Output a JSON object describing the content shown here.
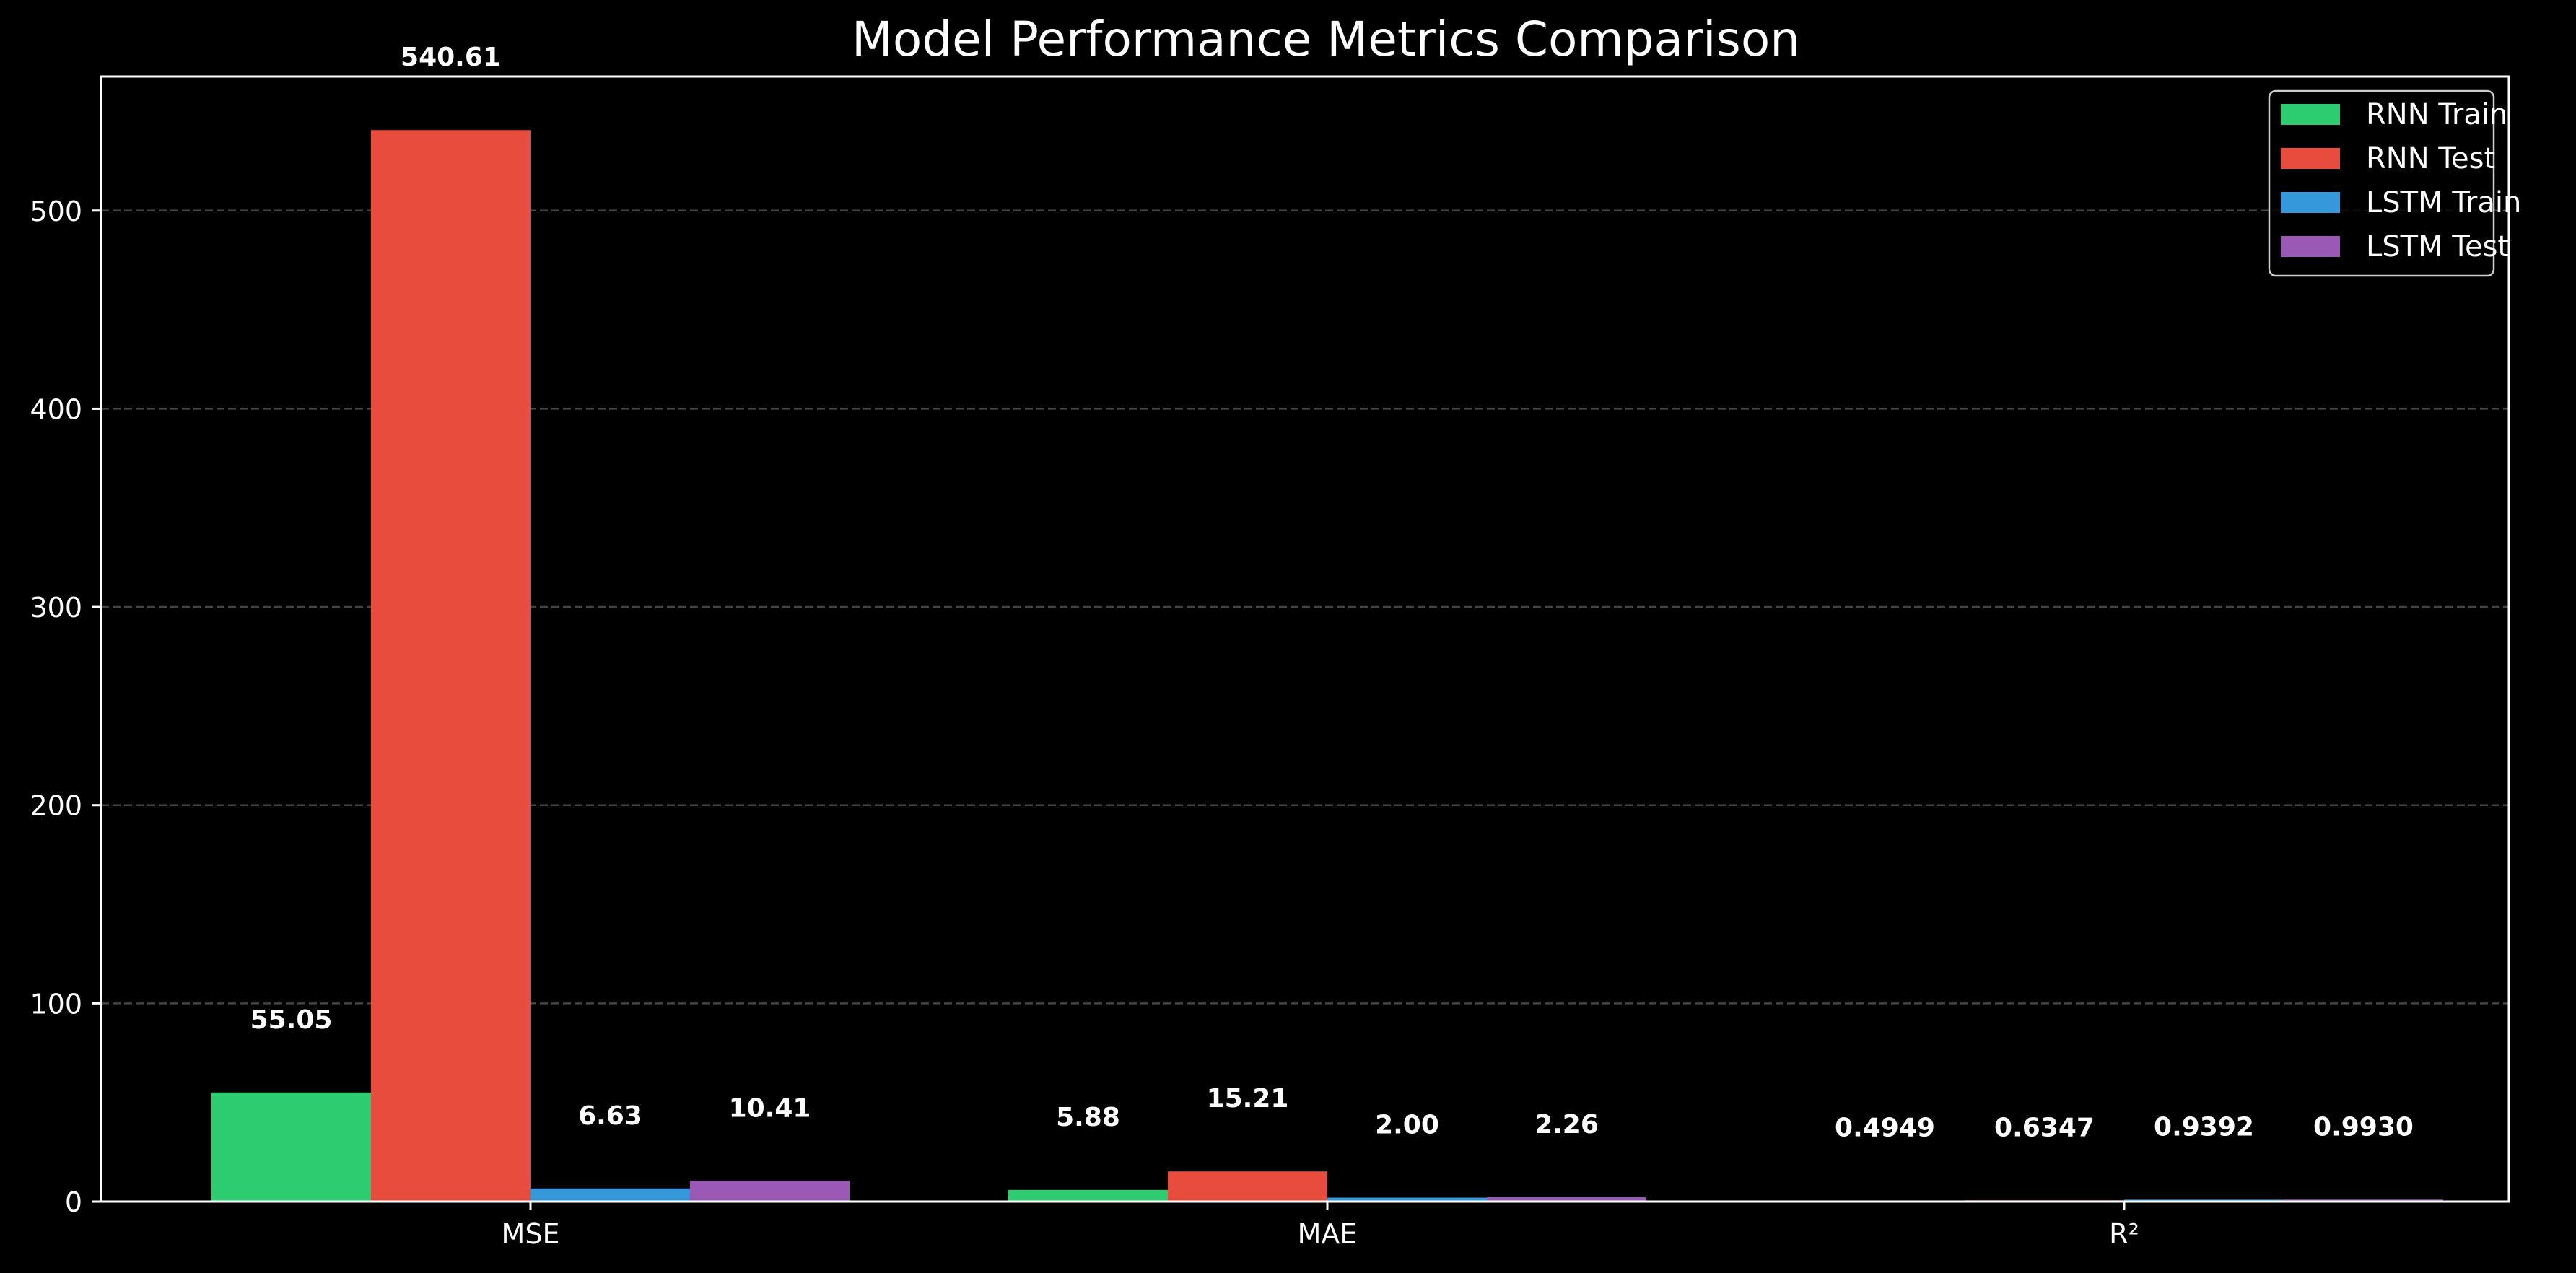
{
  "chart_data": {
    "type": "bar",
    "title": "Model Performance Metrics Comparison",
    "xlabel": "",
    "ylabel": "",
    "categories": [
      "MSE",
      "MAE",
      "R²"
    ],
    "series": [
      {
        "name": "RNN Train",
        "color": "#2ecc71",
        "values": [
          55.05,
          5.88,
          0.4949
        ],
        "labels": [
          "55.05",
          "5.88",
          "0.4949"
        ]
      },
      {
        "name": "RNN Test",
        "color": "#e74c3c",
        "values": [
          540.61,
          15.21,
          0.6347
        ],
        "labels": [
          "540.61",
          "15.21",
          "0.6347"
        ]
      },
      {
        "name": "LSTM Train",
        "color": "#3498db",
        "values": [
          6.63,
          2.0,
          0.9392
        ],
        "labels": [
          "6.63",
          "2.00",
          "0.9392"
        ]
      },
      {
        "name": "LSTM Test",
        "color": "#9b59b6",
        "values": [
          10.41,
          2.26,
          0.993
        ],
        "labels": [
          "10.41",
          "2.26",
          "0.9930"
        ]
      }
    ],
    "ylim": [
      0,
      567.64
    ],
    "yticks": [
      0,
      100,
      200,
      300,
      400,
      500
    ],
    "ytick_labels": [
      "0",
      "100",
      "200",
      "300",
      "400",
      "500"
    ],
    "grid": true,
    "grid_axis": "y",
    "legend_position": "top-right",
    "background": "#000000",
    "text_color": "#ffffff"
  }
}
